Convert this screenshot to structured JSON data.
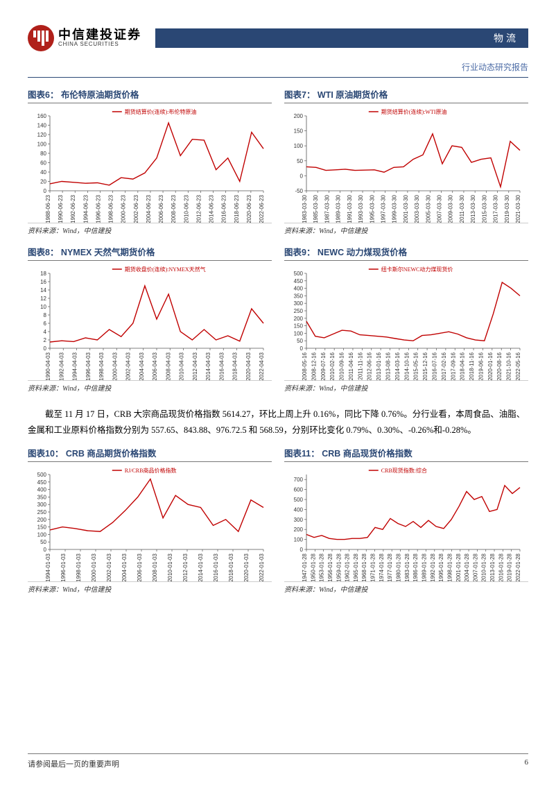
{
  "brand": {
    "cn": "中信建投证券",
    "en": "CHINA SECURITIES",
    "banner": "物流",
    "subtitle": "行业动态研究报告"
  },
  "paragraph": "截至 11 月 17 日，CRB 大宗商品现货价格指数 5614.27，环比上周上升 0.16%，同比下降 0.76%。分行业看，本周食品、油脂、金属和工业原料价格指数分别为 557.65、843.88、976.72.5 和 568.59，分别环比变化 0.79%、0.30%、-0.26%和-0.28%。",
  "source_text": "资料来源：Wind，中信建投",
  "footer": {
    "left": "请参阅最后一页的重要声明",
    "page": "6"
  },
  "styling": {
    "line_color": "#c00000",
    "axis_color": "#555555",
    "grid_color": "#dddddd",
    "title_color": "#2a4774",
    "banner_bg": "#2a4774",
    "brand_red": "#b0201a",
    "label_fontsize": 8,
    "title_fontsize": 12.5
  },
  "charts": [
    {
      "id": "c6",
      "label": "图表6：",
      "title": "布伦特原油期货价格",
      "legend": "期货结算价(连续):布伦特原油",
      "ylim": [
        0,
        160
      ],
      "ytick_step": 20,
      "xlabels": [
        "1988-06-23",
        "1990-06-23",
        "1992-06-23",
        "1994-06-23",
        "1996-06-23",
        "1998-06-23",
        "2000-06-23",
        "2002-06-23",
        "2004-06-23",
        "2006-06-23",
        "2008-06-23",
        "2010-06-23",
        "2012-06-23",
        "2014-06-23",
        "2016-06-23",
        "2018-06-23",
        "2020-06-23",
        "2022-06-23"
      ],
      "values": [
        15,
        20,
        18,
        16,
        17,
        12,
        28,
        25,
        38,
        70,
        145,
        75,
        110,
        108,
        45,
        70,
        20,
        125,
        90
      ]
    },
    {
      "id": "c7",
      "label": "图表7：",
      "title": "WTI 原油期货价格",
      "legend": "期货结算价(连续):WTI原油",
      "ylim": [
        -50,
        200
      ],
      "ytick_step": 50,
      "xlabels": [
        "1983-03-30",
        "1985-03-30",
        "1987-03-30",
        "1989-03-30",
        "1991-03-30",
        "1993-03-30",
        "1995-03-30",
        "1997-03-30",
        "1999-03-30",
        "2001-03-30",
        "2003-03-30",
        "2005-03-30",
        "2007-03-30",
        "2009-03-30",
        "2011-03-30",
        "2013-03-30",
        "2015-03-30",
        "2017-03-30",
        "2019-03-30",
        "2021-03-30"
      ],
      "values": [
        30,
        28,
        18,
        20,
        22,
        18,
        19,
        20,
        12,
        28,
        30,
        55,
        70,
        140,
        40,
        100,
        95,
        45,
        55,
        60,
        -37,
        115,
        85
      ]
    },
    {
      "id": "c8",
      "label": "图表8：",
      "title": "NYMEX 天然气期货价格",
      "legend": "期货收盘价(连续):NYMEX天然气",
      "ylim": [
        0,
        18
      ],
      "ytick_step": 2,
      "xlabels": [
        "1990-04-03",
        "1992-04-03",
        "1994-04-03",
        "1996-04-03",
        "1998-04-03",
        "2000-04-03",
        "2002-04-03",
        "2004-04-03",
        "2006-04-03",
        "2008-04-03",
        "2010-04-03",
        "2012-04-03",
        "2014-04-03",
        "2016-04-03",
        "2018-04-03",
        "2020-04-03",
        "2022-04-03"
      ],
      "values": [
        1.5,
        1.8,
        1.6,
        2.5,
        2.0,
        4.5,
        2.8,
        6,
        15,
        7,
        13,
        4,
        2,
        4.5,
        2,
        3,
        1.7,
        9.5,
        6
      ]
    },
    {
      "id": "c9",
      "label": "图表9：",
      "title": " NEWC 动力煤现货价格",
      "legend": "纽卡斯尔NEWC动力煤现货价",
      "ylim": [
        0,
        500
      ],
      "ytick_step": 50,
      "xlabels": [
        "2008-05-16",
        "2008-12-16",
        "2009-07-16",
        "2010-02-16",
        "2010-09-16",
        "2011-04-16",
        "2011-11-16",
        "2012-06-16",
        "2013-01-16",
        "2013-08-16",
        "2014-03-16",
        "2014-10-16",
        "2015-05-16",
        "2015-12-16",
        "2016-07-16",
        "2017-02-16",
        "2017-09-16",
        "2018-04-16",
        "2018-11-16",
        "2019-06-16",
        "2020-01-16",
        "2020-08-16",
        "2021-10-16",
        "2022-05-16"
      ],
      "values": [
        180,
        80,
        70,
        95,
        120,
        115,
        90,
        85,
        80,
        75,
        65,
        55,
        50,
        85,
        90,
        100,
        110,
        95,
        70,
        55,
        50,
        230,
        440,
        400,
        350
      ]
    },
    {
      "id": "c10",
      "label": "图表10：",
      "title": "CRB 商品期货价格指数",
      "legend": "RJ/CRB商品价格指数",
      "ylim": [
        0,
        500
      ],
      "ytick_step": 50,
      "xlabels": [
        "1994-01-03",
        "1996-01-03",
        "1998-01-03",
        "2000-01-03",
        "2002-01-03",
        "2004-01-03",
        "2006-01-03",
        "2008-01-03",
        "2010-01-03",
        "2012-01-03",
        "2014-01-03",
        "2016-01-03",
        "2018-01-03",
        "2020-01-03",
        "2022-01-03"
      ],
      "values": [
        130,
        150,
        140,
        125,
        120,
        180,
        260,
        350,
        470,
        210,
        360,
        300,
        280,
        160,
        200,
        120,
        330,
        280
      ]
    },
    {
      "id": "c11",
      "label": "图表11：",
      "title": "CRB 商品现货价格指数",
      "legend": "CRB现货指数:综合",
      "ylim": [
        0,
        750
      ],
      "ytick_step": 100,
      "xlabels": [
        "1947-01-28",
        "1950-01-28",
        "1953-01-28",
        "1956-01-28",
        "1959-01-28",
        "1962-01-28",
        "1965-01-28",
        "1968-01-28",
        "1971-01-28",
        "1974-01-28",
        "1977-01-28",
        "1980-01-28",
        "1983-01-28",
        "1986-01-28",
        "1989-01-28",
        "1992-01-28",
        "1995-01-28",
        "1998-01-28",
        "2001-01-28",
        "2004-01-28",
        "2007-01-28",
        "2010-01-28",
        "2013-01-28",
        "2016-01-28",
        "2019-01-28",
        "2022-01-28"
      ],
      "values": [
        150,
        120,
        140,
        110,
        100,
        100,
        110,
        110,
        120,
        220,
        200,
        310,
        260,
        230,
        280,
        220,
        290,
        230,
        210,
        300,
        430,
        580,
        500,
        530,
        380,
        400,
        640,
        560,
        620
      ]
    }
  ]
}
